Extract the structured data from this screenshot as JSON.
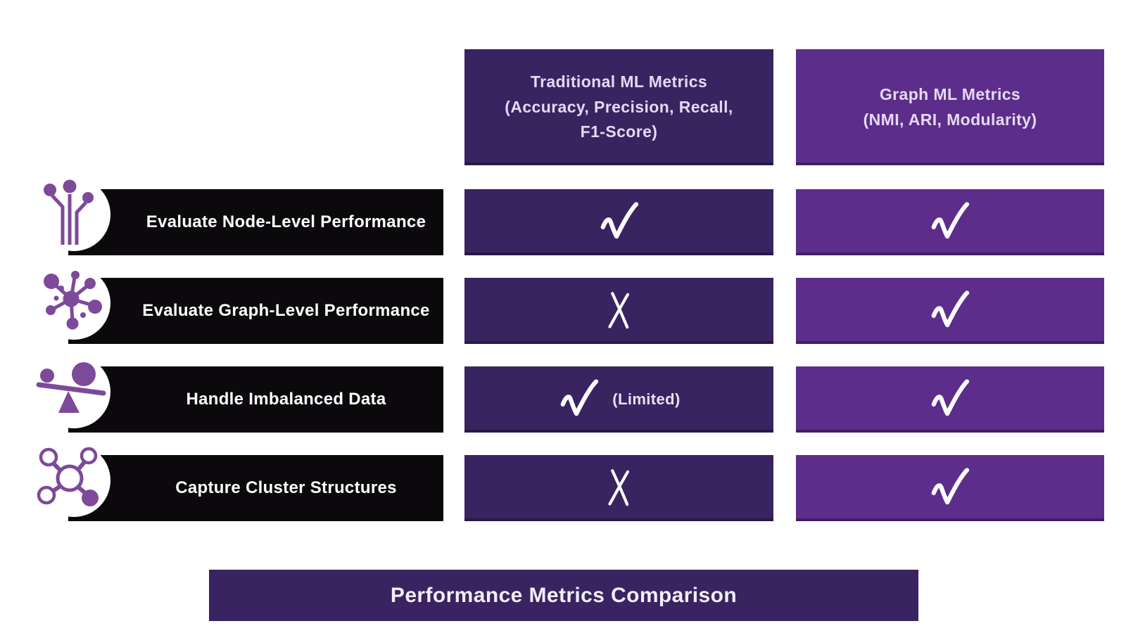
{
  "colors": {
    "dark_purple": "#3a2361",
    "light_purple": "#5d2d8c",
    "label_black": "#0b090c",
    "icon_purple": "#7d4a99",
    "header_text": "#e3daf0",
    "mark_white": "#ffffff"
  },
  "columns": [
    {
      "id": "traditional-ml",
      "label": "Traditional ML Metrics\n(Accuracy, Precision, Recall,\nF1-Score)"
    },
    {
      "id": "graph-ml",
      "label": "Graph ML Metrics\n(NMI, ARI, Modularity)"
    }
  ],
  "rows": [
    {
      "label": "Evaluate Node-Level Performance",
      "icon": "node-pins-icon",
      "traditional": {
        "mark": "check"
      },
      "graph": {
        "mark": "check"
      }
    },
    {
      "label": "Evaluate Graph-Level Performance",
      "icon": "network-hub-icon",
      "traditional": {
        "mark": "cross"
      },
      "graph": {
        "mark": "check"
      }
    },
    {
      "label": "Handle Imbalanced Data",
      "icon": "balance-seesaw-icon",
      "traditional": {
        "mark": "check",
        "note": "(Limited)"
      },
      "graph": {
        "mark": "check"
      }
    },
    {
      "label": "Capture Cluster Structures",
      "icon": "cluster-molecule-icon",
      "traditional": {
        "mark": "cross"
      },
      "graph": {
        "mark": "check"
      }
    }
  ],
  "footer": {
    "title": "Performance Metrics Comparison"
  }
}
